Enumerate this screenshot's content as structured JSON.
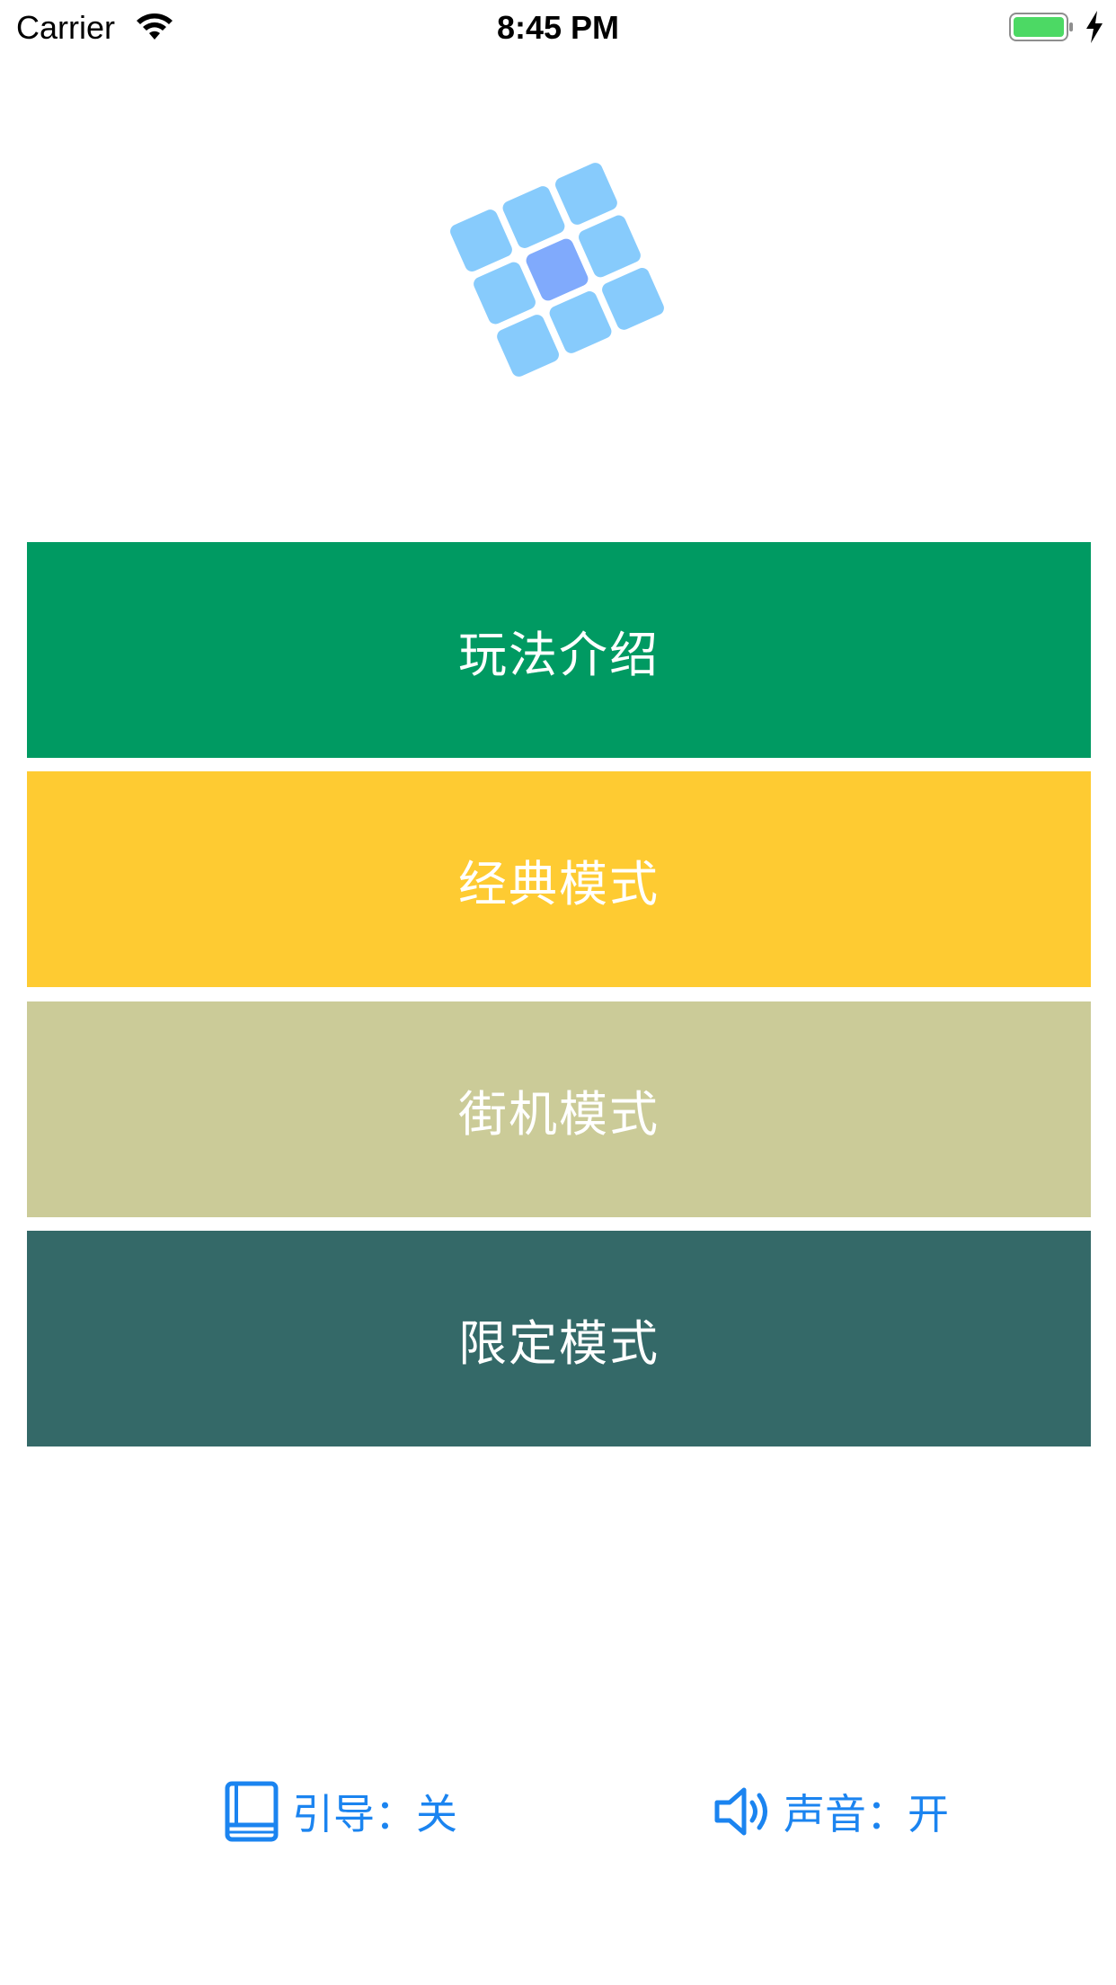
{
  "status_bar": {
    "carrier": "Carrier",
    "time": "8:45 PM",
    "icons": [
      "wifi-icon",
      "battery-icon",
      "charging-bolt-icon"
    ]
  },
  "logo": {
    "icon": "grid-tiles-logo",
    "tile_color": "#87cbfc",
    "center_tile_color": "#80aafc"
  },
  "menu": {
    "items": [
      {
        "label": "玩法介绍",
        "color": "#009a62"
      },
      {
        "label": "经典模式",
        "color": "#fecb32"
      },
      {
        "label": "街机模式",
        "color": "#cbcb98"
      },
      {
        "label": "限定模式",
        "color": "#346968"
      }
    ]
  },
  "bottom": {
    "guide": {
      "label": "引导：",
      "value": "关",
      "icon": "book-icon"
    },
    "sound": {
      "label": "声音：",
      "value": "开",
      "icon": "speaker-icon"
    },
    "accent_color": "#1b84f0"
  }
}
